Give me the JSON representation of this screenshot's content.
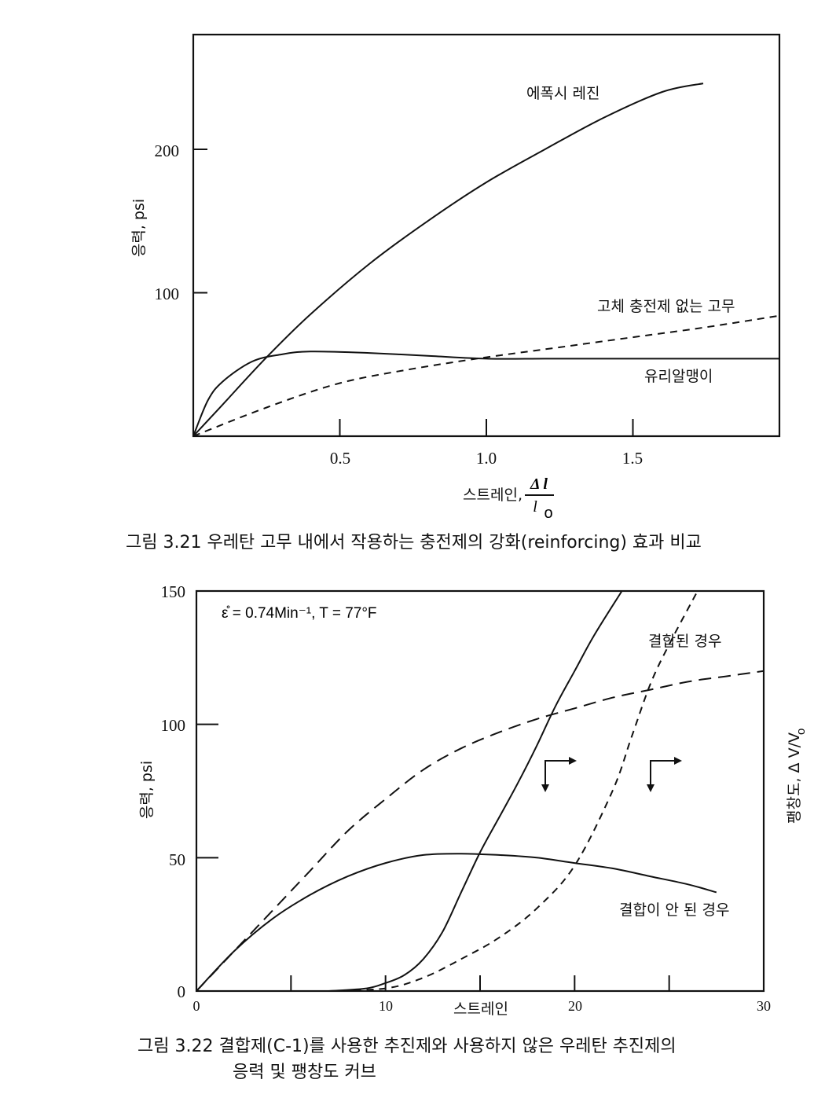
{
  "chart_data": [
    {
      "type": "line",
      "title": "",
      "ylabel": "응력, psi",
      "xlabel_prefix": "스트레인,",
      "xlabel_frac_num": "Δ l",
      "xlabel_frac_den": "l",
      "xlabel_frac_sub": "o",
      "xlim": [
        0,
        2.0
      ],
      "ylim": [
        0,
        280
      ],
      "x_ticks": [
        0.5,
        1.0,
        1.5
      ],
      "x_tick_labels": [
        "0.5",
        "1.0",
        "1.5"
      ],
      "y_ticks": [
        100,
        200
      ],
      "y_tick_labels": [
        "100",
        "200"
      ],
      "series": [
        {
          "name": "에폭시 레진",
          "style": "solid",
          "x": [
            0,
            0.1,
            0.25,
            0.4,
            0.6,
            0.8,
            1.0,
            1.2,
            1.4,
            1.6,
            1.74
          ],
          "y": [
            0,
            22,
            55,
            85,
            120,
            150,
            177,
            200,
            222,
            240,
            246
          ]
        },
        {
          "name": "고체 충전제 없는 고무",
          "style": "dashed",
          "x": [
            0,
            0.25,
            0.5,
            0.75,
            1.0,
            1.25,
            1.5,
            1.75,
            2.0
          ],
          "y": [
            0,
            20,
            37,
            47,
            55,
            62,
            69,
            76,
            84
          ]
        },
        {
          "name": "유리알맹이",
          "style": "solid",
          "x": [
            0,
            0.05,
            0.1,
            0.2,
            0.3,
            0.4,
            0.6,
            0.8,
            1.0,
            1.2,
            1.4,
            1.6,
            2.0
          ],
          "y": [
            0,
            25,
            38,
            52,
            57,
            59,
            58,
            56,
            54,
            54,
            54,
            54,
            54
          ]
        }
      ],
      "caption": "그림 3.21   우레탄 고무 내에서 작용하는 충전제의 강화(reinforcing) 효과 비교"
    },
    {
      "type": "line",
      "title": "",
      "annotation": "ε̊ = 0.74Min⁻¹,  T = 77°F",
      "ylabel": "응력, psi",
      "y2label": "팽창도, Δ V/V",
      "y2label_sub": "o",
      "xlabel": "스트레인",
      "xlim": [
        0,
        30
      ],
      "ylim": [
        0,
        150
      ],
      "x_ticks": [
        0,
        5,
        10,
        15,
        20,
        25,
        30
      ],
      "x_tick_labels": [
        "0",
        "10",
        "20",
        "30"
      ],
      "x_tick_label_values": [
        0,
        10,
        20,
        30
      ],
      "y_ticks": [
        0,
        50,
        100,
        150
      ],
      "y_tick_labels": [
        "0",
        "50",
        "100",
        "150"
      ],
      "series": [
        {
          "label_group": "결합된 경우",
          "style": "dashed",
          "quantity": "stress",
          "x": [
            0,
            2,
            4,
            6,
            8,
            10,
            12,
            14,
            16,
            18,
            20,
            22,
            24,
            26,
            28,
            30
          ],
          "y": [
            0,
            15,
            30,
            45,
            60,
            72,
            83,
            91,
            97,
            102,
            106,
            110,
            113,
            116,
            118,
            120
          ]
        },
        {
          "label_group": "결합된 경우",
          "style": "dashed",
          "quantity": "dilatation",
          "x": [
            7,
            10,
            12,
            14,
            16,
            18,
            20,
            22,
            23,
            24,
            25,
            26.5
          ],
          "y": [
            0,
            1,
            5,
            12,
            20,
            31,
            47,
            75,
            95,
            115,
            130,
            150
          ]
        },
        {
          "label_group": "결합이 안 된 경우",
          "style": "solid",
          "quantity": "stress",
          "x": [
            0,
            2,
            4,
            6,
            8,
            10,
            12,
            14,
            16,
            18,
            20,
            22,
            24,
            26,
            27.5
          ],
          "y": [
            0,
            15,
            27,
            36,
            43,
            48,
            51,
            51.5,
            51,
            50,
            48,
            46,
            43,
            40,
            37
          ]
        },
        {
          "label_group": "결합이 안 된 경우",
          "style": "solid",
          "quantity": "dilatation",
          "x": [
            7,
            9,
            10,
            11,
            12,
            13,
            14,
            15,
            16,
            17,
            18,
            19,
            20,
            21,
            22.5
          ],
          "y": [
            0,
            1,
            3,
            6,
            12,
            22,
            37,
            52,
            65,
            78,
            92,
            107,
            120,
            133,
            150
          ]
        }
      ],
      "labels": [
        "결합된 경우",
        "결합이 안 된 경우"
      ],
      "caption_line1": "그림 3.22  결합제(C-1)를 사용한 추진제와 사용하지 않은 우레탄 추진제의",
      "caption_line2": "응력 및 팽창도 커브"
    }
  ]
}
